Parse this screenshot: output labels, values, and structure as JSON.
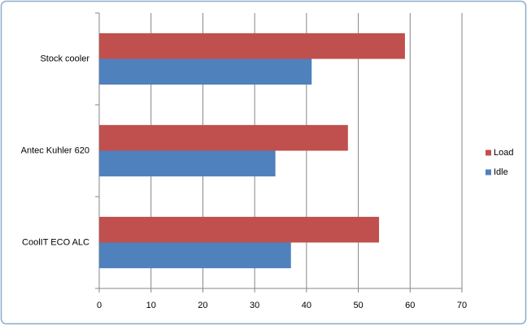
{
  "chart_data": {
    "type": "bar",
    "horizontal": true,
    "categories": [
      "Stock cooler",
      "Antec Kuhler 620",
      "CoolIT ECO ALC"
    ],
    "series": [
      {
        "name": "Load",
        "color": "#c0504d",
        "values": [
          59,
          48,
          54
        ]
      },
      {
        "name": "Idle",
        "color": "#4f81bd",
        "values": [
          41,
          34,
          37
        ]
      }
    ],
    "xlim": [
      0,
      70
    ],
    "xticks": [
      0,
      10,
      20,
      30,
      40,
      50,
      60,
      70
    ],
    "grid": true,
    "legend": "right"
  }
}
